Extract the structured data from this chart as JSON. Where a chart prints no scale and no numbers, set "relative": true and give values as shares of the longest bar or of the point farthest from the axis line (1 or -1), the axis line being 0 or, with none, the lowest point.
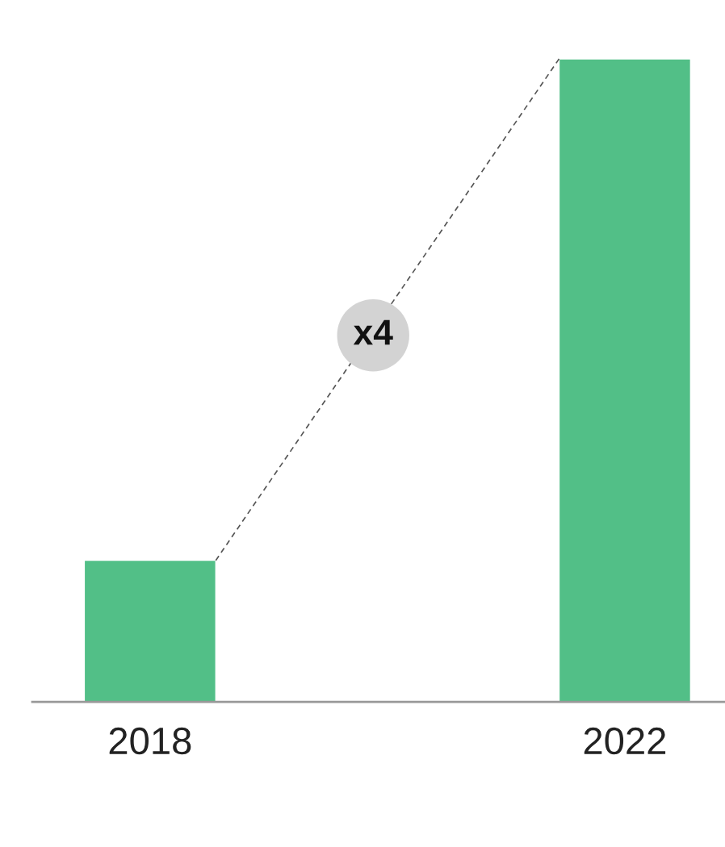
{
  "chart_data": {
    "type": "bar",
    "categories": [
      "2018",
      "2022"
    ],
    "values": [
      0.22,
      1
    ],
    "colors": [
      "#52bf87",
      "#52bf87"
    ],
    "relative": true,
    "annotations": [
      "x4"
    ]
  }
}
